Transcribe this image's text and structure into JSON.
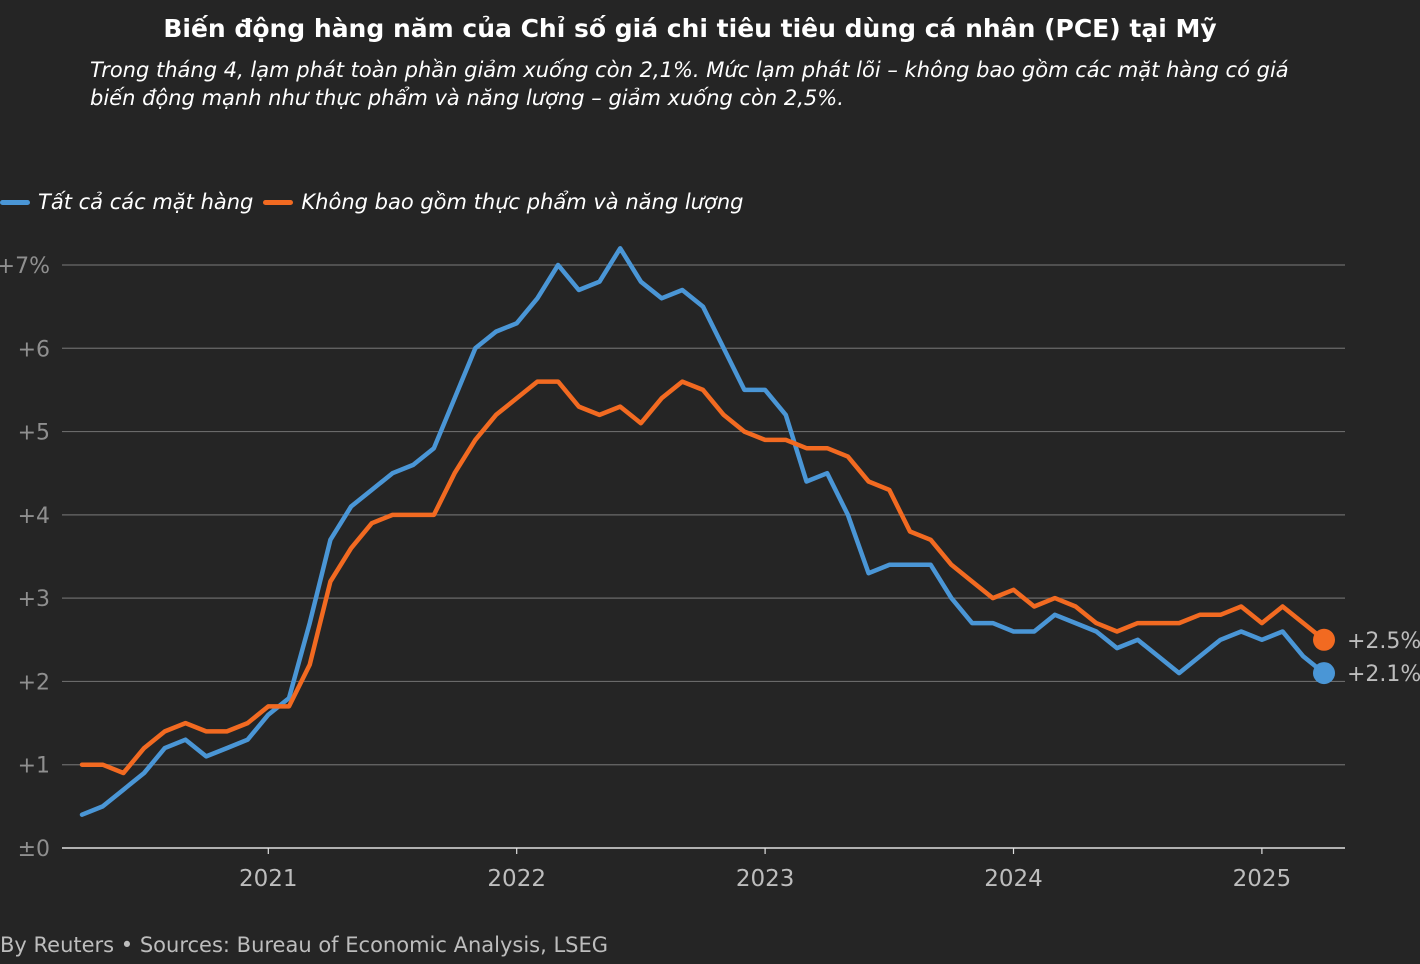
{
  "title": "Biến động hàng năm của Chỉ số giá chi tiêu tiêu dùng cá nhân (PCE) tại Mỹ",
  "subtitle": "Trong tháng 4, lạm phát toàn phần giảm xuống còn 2,1%. Mức lạm phát lõi – không bao gồm các mặt hàng có giá biến động mạnh như thực phẩm và năng lượng – giảm xuống còn 2,5%.",
  "footer": "By Reuters • Sources: Bureau of Economic Analysis, LSEG",
  "chart_data": {
    "type": "line",
    "x_start": "2020-04",
    "x_frequency": "monthly",
    "x_tick_labels": [
      "2021",
      "2022",
      "2023",
      "2024",
      "2025"
    ],
    "y_tick_labels": [
      "±0",
      "+1",
      "+2",
      "+3",
      "+4",
      "+5",
      "+6",
      "+7%"
    ],
    "ylim": [
      0,
      7
    ],
    "grid": true,
    "legend_position": "top-left",
    "series": [
      {
        "name": "Tất cả các mặt hàng",
        "color": "#4a96d6",
        "end_label": "+2.1%",
        "values": [
          0.4,
          0.5,
          0.7,
          0.9,
          1.2,
          1.3,
          1.1,
          1.2,
          1.3,
          1.6,
          1.8,
          2.7,
          3.7,
          4.1,
          4.3,
          4.5,
          4.6,
          4.8,
          5.4,
          6.0,
          6.2,
          6.3,
          6.6,
          7.0,
          6.7,
          6.8,
          7.2,
          6.8,
          6.6,
          6.7,
          6.5,
          6.0,
          5.5,
          5.5,
          5.2,
          4.4,
          4.5,
          4.0,
          3.3,
          3.4,
          3.4,
          3.4,
          3.0,
          2.7,
          2.7,
          2.6,
          2.6,
          2.8,
          2.7,
          2.6,
          2.4,
          2.5,
          2.3,
          2.1,
          2.3,
          2.5,
          2.6,
          2.5,
          2.6,
          2.3,
          2.1
        ]
      },
      {
        "name": "Không bao gồm thực phẩm và năng lượng",
        "color": "#f26a21",
        "end_label": "+2.5%",
        "values": [
          1.0,
          1.0,
          0.9,
          1.2,
          1.4,
          1.5,
          1.4,
          1.4,
          1.5,
          1.7,
          1.7,
          2.2,
          3.2,
          3.6,
          3.9,
          4.0,
          4.0,
          4.0,
          4.5,
          4.9,
          5.2,
          5.4,
          5.6,
          5.6,
          5.3,
          5.2,
          5.3,
          5.1,
          5.4,
          5.6,
          5.5,
          5.2,
          5.0,
          4.9,
          4.9,
          4.8,
          4.8,
          4.7,
          4.4,
          4.3,
          3.8,
          3.7,
          3.4,
          3.2,
          3.0,
          3.1,
          2.9,
          3.0,
          2.9,
          2.7,
          2.6,
          2.7,
          2.7,
          2.7,
          2.8,
          2.8,
          2.9,
          2.7,
          2.9,
          2.7,
          2.5
        ]
      }
    ]
  }
}
